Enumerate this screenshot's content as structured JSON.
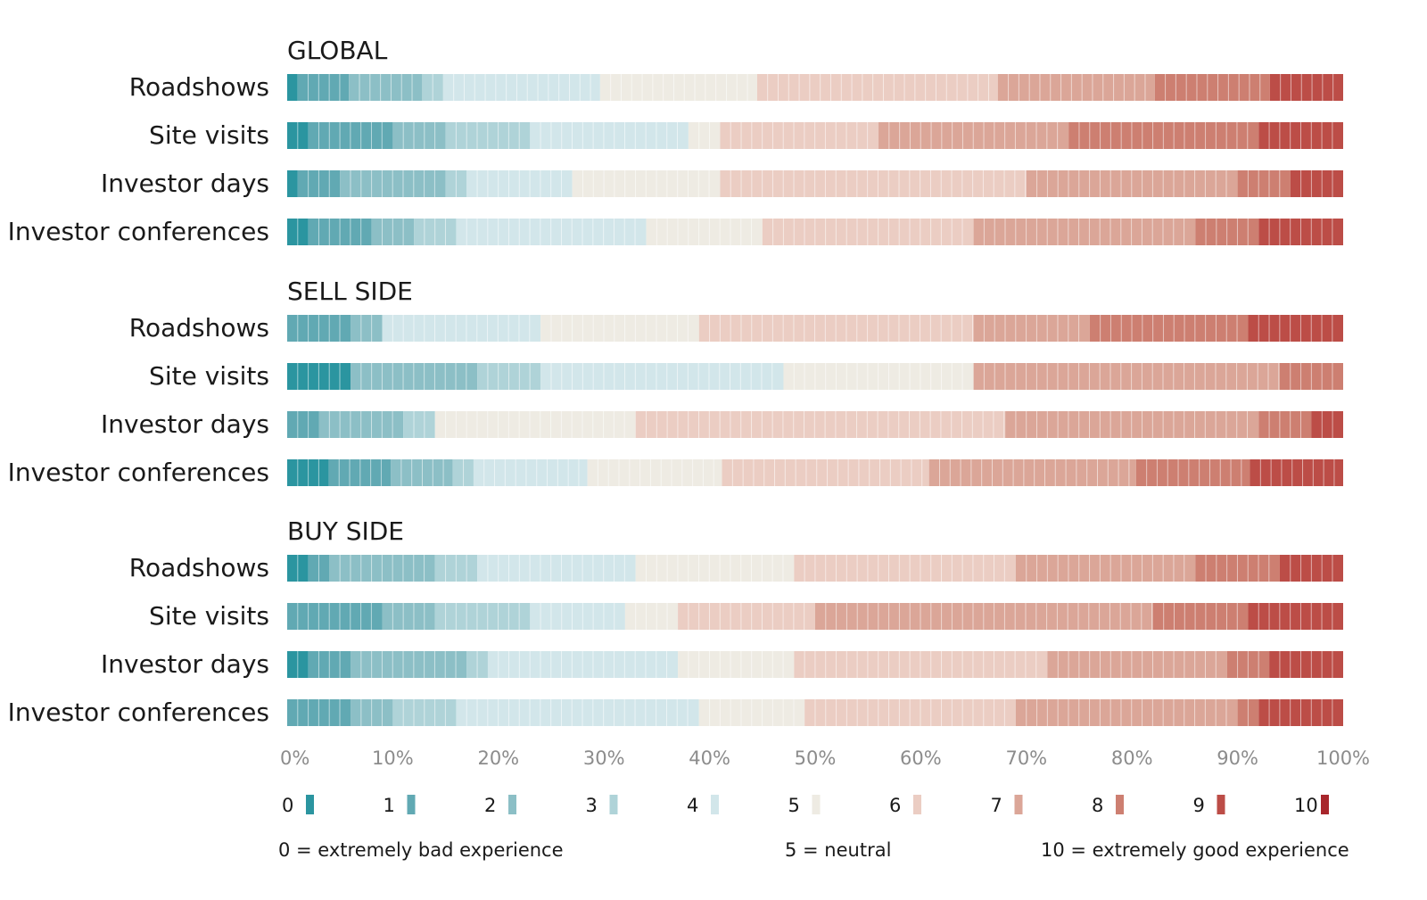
{
  "chart_data": {
    "type": "bar",
    "stacked": true,
    "orientation": "horizontal",
    "xlim": [
      0,
      100
    ],
    "x_ticks": [
      "0%",
      "10%",
      "20%",
      "30%",
      "40%",
      "50%",
      "60%",
      "70%",
      "80%",
      "90%",
      "100%"
    ],
    "scores": [
      "0",
      "1",
      "2",
      "3",
      "4",
      "5",
      "6",
      "7",
      "8",
      "9",
      "10"
    ],
    "colors": [
      "#2b95a0",
      "#61a9b3",
      "#8cbfc6",
      "#afd3d8",
      "#d2e6ea",
      "#eeebe3",
      "#ebcdc3",
      "#dba698",
      "#cd7f71",
      "#bc4d47",
      "#a8262c"
    ],
    "groups": [
      {
        "title": "GLOBAL",
        "rows": [
          {
            "label": "Roadshows",
            "values": [
              1,
              4.9,
              7,
              2,
              15,
              15,
              23,
              15,
              11,
              7,
              0
            ]
          },
          {
            "label": "Site visits",
            "values": [
              2,
              8,
              5,
              8,
              15,
              3,
              15,
              18,
              18,
              8,
              0
            ]
          },
          {
            "label": "Investor days",
            "values": [
              1,
              4,
              10,
              2,
              10,
              14,
              29,
              20,
              5,
              5,
              0
            ]
          },
          {
            "label": "Investor conferences",
            "values": [
              2,
              6,
              4,
              4,
              18,
              11,
              20,
              21,
              6,
              8,
              0
            ]
          }
        ]
      },
      {
        "title": "SELL SIDE",
        "rows": [
          {
            "label": "Roadshows",
            "values": [
              0,
              6,
              3,
              0,
              15,
              15,
              26,
              11,
              15,
              9,
              0
            ]
          },
          {
            "label": "Site visits",
            "values": [
              6,
              0,
              12,
              6,
              23,
              18,
              0,
              29,
              6,
              0,
              0
            ]
          },
          {
            "label": "Investor days",
            "values": [
              0,
              3,
              8,
              3,
              0,
              19,
              35,
              24,
              5,
              3,
              0
            ]
          },
          {
            "label": "Investor conferences",
            "values": [
              4,
              6,
              6,
              2,
              11,
              13,
              20,
              20,
              11,
              9,
              0
            ]
          }
        ]
      },
      {
        "title": "BUY SIDE",
        "rows": [
          {
            "label": "Roadshows",
            "values": [
              2,
              2,
              10,
              4,
              15,
              15,
              21,
              17,
              8,
              6,
              0
            ]
          },
          {
            "label": "Site visits",
            "values": [
              0,
              9,
              5,
              9,
              9,
              5,
              13,
              32,
              9,
              9,
              0
            ]
          },
          {
            "label": "Investor days",
            "values": [
              2,
              4,
              11,
              2,
              18,
              11,
              24,
              17,
              4,
              7,
              0
            ]
          },
          {
            "label": "Investor conferences",
            "values": [
              0,
              6,
              4,
              6,
              23,
              10,
              20,
              21,
              2,
              8,
              0
            ]
          }
        ]
      }
    ],
    "legend_position": "bottom",
    "notes": {
      "bad": "0 = extremely bad experience",
      "neutral": "5 = neutral",
      "good": "10 = extremely good experience"
    }
  }
}
